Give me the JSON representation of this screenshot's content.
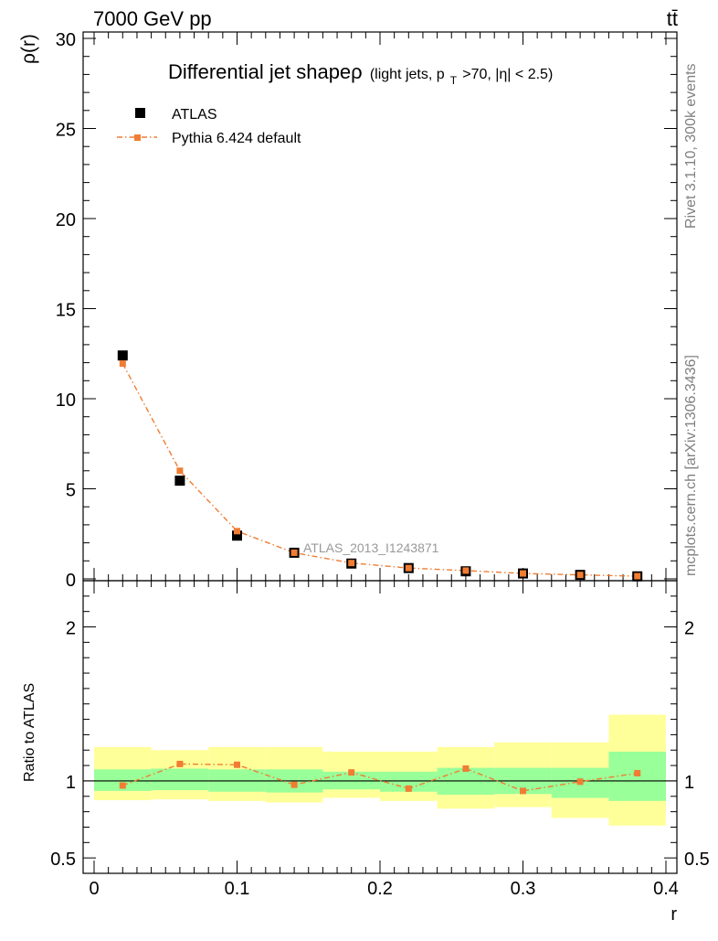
{
  "header": {
    "energy_label": "7000 GeV pp",
    "process_label": "tt̄"
  },
  "side_labels": {
    "rivet": "Rivet 3.1.10,  300k events",
    "mcplots": "mcplots.cern.ch [arXiv:1306.3436]"
  },
  "colors": {
    "data": "#000000",
    "mc": "#f07d33",
    "band_inner": "#99ff99",
    "band_outer": "#ffff99"
  },
  "chart_data": [
    {
      "type": "scatter",
      "title": "Differential jet shapeρ",
      "title_detail": "(light jets, p",
      "title_sub": "T",
      "title_rest": ">70, |η| < 2.5)",
      "ylabel": "ρ(r)",
      "xlabel": "",
      "ylim": [
        0,
        30
      ],
      "xlim": [
        0,
        0.4
      ],
      "y_ticks": [
        0,
        5,
        10,
        15,
        20,
        25,
        30
      ],
      "y_tick_labels": [
        "0",
        "5",
        "10",
        "15",
        "20",
        "25",
        "30"
      ],
      "watermark": "ATLAS_2013_I1243871",
      "legend_position": "top-left",
      "x": [
        0.02,
        0.06,
        0.1,
        0.14,
        0.18,
        0.22,
        0.26,
        0.3,
        0.34,
        0.38
      ],
      "series": [
        {
          "name": "ATLAS",
          "style": "markers",
          "values": [
            12.4,
            5.45,
            2.4,
            1.45,
            0.85,
            0.6,
            0.42,
            0.3,
            0.22,
            0.14
          ]
        },
        {
          "name": "Pythia 6.424 default",
          "style": "dash-dot line with markers",
          "values": [
            11.95,
            6.0,
            2.65,
            1.45,
            0.88,
            0.6,
            0.46,
            0.3,
            0.22,
            0.15
          ]
        }
      ]
    },
    {
      "type": "scatter",
      "ylabel": "Ratio to ATLAS",
      "xlabel": "r",
      "ylim": [
        0.4,
        2.3
      ],
      "xlim": [
        0,
        0.4
      ],
      "y_ticks": [
        0.5,
        1,
        2
      ],
      "y_tick_labels": [
        "0.5",
        "1",
        "2"
      ],
      "x_ticks": [
        0,
        0.1,
        0.2,
        0.3,
        0.4
      ],
      "x_tick_labels": [
        "0",
        "0.1",
        "0.2",
        "0.3",
        "0.4"
      ],
      "bin_edges": [
        0,
        0.04,
        0.08,
        0.12,
        0.16,
        0.2,
        0.24,
        0.28,
        0.32,
        0.36,
        0.4
      ],
      "inner_band": [
        {
          "low": 0.935,
          "high": 1.075
        },
        {
          "low": 0.94,
          "high": 1.08
        },
        {
          "low": 0.93,
          "high": 1.075
        },
        {
          "low": 0.925,
          "high": 1.075
        },
        {
          "low": 0.945,
          "high": 1.06
        },
        {
          "low": 0.93,
          "high": 1.06
        },
        {
          "low": 0.91,
          "high": 1.085
        },
        {
          "low": 0.915,
          "high": 1.085
        },
        {
          "low": 0.89,
          "high": 1.085
        },
        {
          "low": 0.87,
          "high": 1.19
        }
      ],
      "outer_band": [
        {
          "low": 0.875,
          "high": 1.22
        },
        {
          "low": 0.88,
          "high": 1.2
        },
        {
          "low": 0.87,
          "high": 1.22
        },
        {
          "low": 0.86,
          "high": 1.22
        },
        {
          "low": 0.89,
          "high": 1.19
        },
        {
          "low": 0.87,
          "high": 1.19
        },
        {
          "low": 0.82,
          "high": 1.22
        },
        {
          "low": 0.83,
          "high": 1.25
        },
        {
          "low": 0.76,
          "high": 1.25
        },
        {
          "low": 0.71,
          "high": 1.43
        }
      ],
      "series": [
        {
          "name": "Pythia 6.424 default",
          "values": [
            0.97,
            1.11,
            1.105,
            0.975,
            1.055,
            0.95,
            1.08,
            0.935,
            0.995,
            1.05
          ]
        }
      ]
    }
  ]
}
